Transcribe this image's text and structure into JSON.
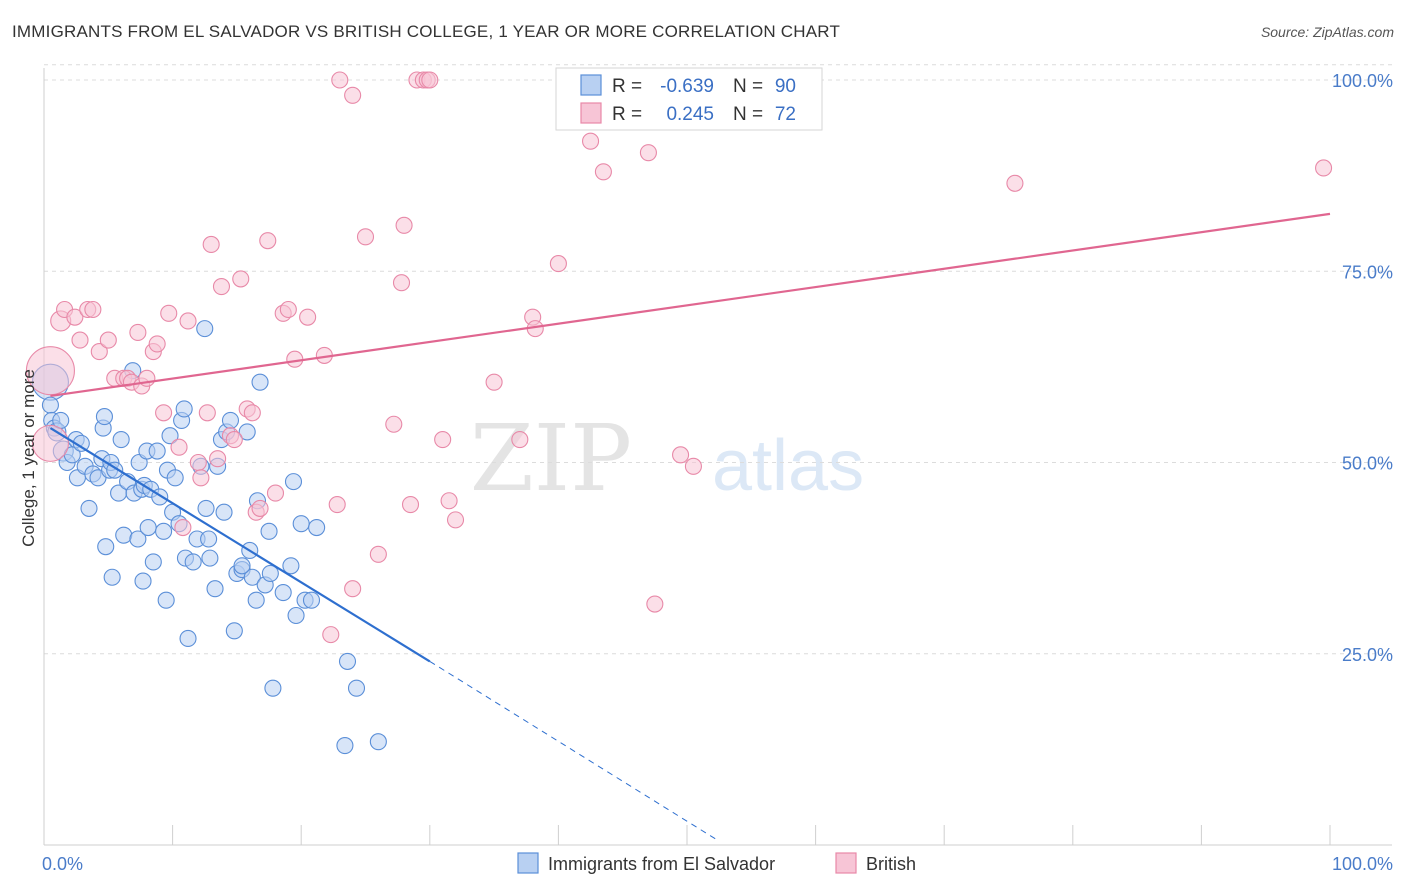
{
  "title": "IMMIGRANTS FROM EL SALVADOR VS BRITISH COLLEGE, 1 YEAR OR MORE CORRELATION CHART",
  "source": "Source: ZipAtlas.com",
  "watermark": {
    "zip": "ZIP",
    "atlas": "atlas"
  },
  "colors": {
    "blue_fill": "#b8d0f2",
    "blue_stroke": "#5b8fd8",
    "blue_line": "#2e6fcf",
    "pink_fill": "#f7c5d6",
    "pink_stroke": "#e889a8",
    "pink_line": "#e06690",
    "grid": "#dcdcdc",
    "tick_label": "#4a7cc9"
  },
  "stats": [
    {
      "series": "Immigrants from El Salvador",
      "r_label": "R =",
      "r": "-0.639",
      "n_label": "N =",
      "n": "90"
    },
    {
      "series": "British",
      "r_label": "R =",
      "r": "0.245",
      "n_label": "N =",
      "n": "72"
    }
  ],
  "chart_data": {
    "type": "scatter",
    "title": "IMMIGRANTS FROM EL SALVADOR VS BRITISH COLLEGE, 1 YEAR OR MORE CORRELATION CHART",
    "xlabel": "",
    "ylabel": "College, 1 year or more",
    "xlim": [
      0,
      100
    ],
    "ylim": [
      0,
      102
    ],
    "x_tick_labels": [
      {
        "value": 0,
        "label": "0.0%"
      },
      {
        "value": 100,
        "label": "100.0%"
      }
    ],
    "y_tick_labels": [
      {
        "value": 25,
        "label": "25.0%"
      },
      {
        "value": 50,
        "label": "50.0%"
      },
      {
        "value": 75,
        "label": "75.0%"
      },
      {
        "value": 100,
        "label": "100.0%"
      }
    ],
    "legend": [
      "Immigrants from El Salvador",
      "British"
    ],
    "legend_position": "bottom-center",
    "series": [
      {
        "name": "Immigrants from El Salvador",
        "color": "#5b8fd8",
        "points": [
          [
            0.5,
            60.5,
            18
          ],
          [
            0.5,
            57.5,
            8
          ],
          [
            0.6,
            55.5,
            8
          ],
          [
            0.8,
            54.5,
            8
          ],
          [
            1.0,
            54,
            9
          ],
          [
            1.3,
            55.5,
            8
          ],
          [
            1.5,
            51.5,
            10
          ],
          [
            1.8,
            50,
            8
          ],
          [
            2.2,
            51,
            8
          ],
          [
            2.5,
            53,
            8
          ],
          [
            2.6,
            48,
            8
          ],
          [
            2.9,
            52.5,
            8
          ],
          [
            3.2,
            49.5,
            8
          ],
          [
            3.5,
            44,
            8
          ],
          [
            3.8,
            48.5,
            8
          ],
          [
            4.2,
            48,
            8
          ],
          [
            4.5,
            50.5,
            8
          ],
          [
            4.6,
            54.5,
            8
          ],
          [
            4.7,
            56,
            8
          ],
          [
            4.8,
            39,
            8
          ],
          [
            5.1,
            49,
            8
          ],
          [
            5.2,
            50,
            8
          ],
          [
            5.3,
            35,
            8
          ],
          [
            5.5,
            49,
            8
          ],
          [
            5.8,
            46,
            8
          ],
          [
            6,
            53,
            8
          ],
          [
            6.2,
            40.5,
            8
          ],
          [
            6.5,
            47.5,
            8
          ],
          [
            6.9,
            62,
            8
          ],
          [
            7,
            46,
            8
          ],
          [
            7.3,
            40,
            8
          ],
          [
            7.4,
            50,
            8
          ],
          [
            7.6,
            46.5,
            8
          ],
          [
            7.7,
            34.5,
            8
          ],
          [
            7.8,
            47,
            8
          ],
          [
            8,
            51.5,
            8
          ],
          [
            8.1,
            41.5,
            8
          ],
          [
            8.3,
            46.5,
            8
          ],
          [
            8.5,
            37,
            8
          ],
          [
            8.8,
            51.5,
            8
          ],
          [
            9.0,
            45.5,
            8
          ],
          [
            9.3,
            41,
            8
          ],
          [
            9.5,
            32,
            8
          ],
          [
            9.6,
            49,
            8
          ],
          [
            9.8,
            53.5,
            8
          ],
          [
            10,
            43.5,
            8
          ],
          [
            10.2,
            48,
            8
          ],
          [
            10.5,
            42,
            8
          ],
          [
            10.7,
            55.5,
            8
          ],
          [
            10.9,
            57,
            8
          ],
          [
            11,
            37.5,
            8
          ],
          [
            11.2,
            27,
            8
          ],
          [
            11.6,
            37,
            8
          ],
          [
            11.9,
            40,
            8
          ],
          [
            12.2,
            49.5,
            8
          ],
          [
            12.5,
            67.5,
            8
          ],
          [
            12.6,
            44,
            8
          ],
          [
            12.8,
            40,
            8
          ],
          [
            12.9,
            37.5,
            8
          ],
          [
            13.3,
            33.5,
            8
          ],
          [
            13.5,
            49.5,
            8
          ],
          [
            13.8,
            53,
            8
          ],
          [
            14.0,
            43.5,
            8
          ],
          [
            14.2,
            54,
            8
          ],
          [
            14.5,
            55.5,
            8
          ],
          [
            14.8,
            28,
            8
          ],
          [
            15,
            35.5,
            8
          ],
          [
            15.4,
            36,
            8
          ],
          [
            15.8,
            54,
            8
          ],
          [
            16.0,
            38.5,
            8
          ],
          [
            16.2,
            35,
            8
          ],
          [
            16.5,
            32,
            8
          ],
          [
            16.6,
            45,
            8
          ],
          [
            16.8,
            60.5,
            8
          ],
          [
            17.2,
            34,
            8
          ],
          [
            17.5,
            41,
            8
          ],
          [
            17.6,
            35.5,
            8
          ],
          [
            17.8,
            20.5,
            8
          ],
          [
            18.6,
            33,
            8
          ],
          [
            19.2,
            36.5,
            8
          ],
          [
            19.4,
            47.5,
            8
          ],
          [
            19.6,
            30,
            8
          ],
          [
            20,
            42,
            8
          ],
          [
            20.3,
            32,
            8
          ],
          [
            20.8,
            32,
            8
          ],
          [
            21.2,
            41.5,
            8
          ],
          [
            23.6,
            24,
            8
          ],
          [
            24.3,
            20.5,
            8
          ],
          [
            23.4,
            13,
            8
          ],
          [
            26.0,
            13.5,
            8
          ],
          [
            15.4,
            36.5,
            8
          ]
        ],
        "trend_solid": [
          [
            0.5,
            54.5
          ],
          [
            30,
            24
          ]
        ],
        "trend_dashed": [
          [
            30,
            24
          ],
          [
            52.5,
            0.5
          ]
        ]
      },
      {
        "name": "British",
        "color": "#e889a8",
        "points": [
          [
            0.5,
            62,
            24
          ],
          [
            0.5,
            52.5,
            18
          ],
          [
            1.3,
            68.5,
            10
          ],
          [
            1.6,
            70,
            8
          ],
          [
            2.4,
            69,
            8
          ],
          [
            2.8,
            66,
            8
          ],
          [
            3.4,
            70,
            8
          ],
          [
            3.8,
            70,
            8
          ],
          [
            4.3,
            64.5,
            8
          ],
          [
            5.0,
            66,
            8
          ],
          [
            5.5,
            61,
            8
          ],
          [
            6.2,
            61,
            8
          ],
          [
            6.5,
            61,
            8
          ],
          [
            6.8,
            60.5,
            8
          ],
          [
            7.3,
            67,
            8
          ],
          [
            7.6,
            60,
            8
          ],
          [
            8.0,
            61,
            8
          ],
          [
            8.5,
            64.5,
            8
          ],
          [
            8.8,
            65.5,
            8
          ],
          [
            9.3,
            56.5,
            8
          ],
          [
            9.7,
            69.5,
            8
          ],
          [
            10.5,
            52,
            8
          ],
          [
            10.8,
            41.5,
            8
          ],
          [
            11.2,
            68.5,
            8
          ],
          [
            12.0,
            50,
            8
          ],
          [
            12.2,
            48,
            8
          ],
          [
            12.7,
            56.5,
            8
          ],
          [
            13.0,
            78.5,
            8
          ],
          [
            13.5,
            50.5,
            8
          ],
          [
            13.8,
            73,
            8
          ],
          [
            14.5,
            53.5,
            8
          ],
          [
            14.8,
            53,
            8
          ],
          [
            15.3,
            74,
            8
          ],
          [
            15.8,
            57,
            8
          ],
          [
            16.2,
            56.5,
            8
          ],
          [
            16.5,
            43.5,
            8
          ],
          [
            16.8,
            44,
            8
          ],
          [
            17.4,
            79,
            8
          ],
          [
            18.0,
            46,
            8
          ],
          [
            18.6,
            69.5,
            8
          ],
          [
            19.0,
            70,
            8
          ],
          [
            19.5,
            63.5,
            8
          ],
          [
            20.5,
            69,
            8
          ],
          [
            21.8,
            64,
            8
          ],
          [
            22.3,
            27.5,
            8
          ],
          [
            22.8,
            44.5,
            8
          ],
          [
            23.0,
            100,
            8
          ],
          [
            24.0,
            98,
            8
          ],
          [
            24.0,
            33.5,
            8
          ],
          [
            25.0,
            79.5,
            8
          ],
          [
            26.0,
            38,
            8
          ],
          [
            27.2,
            55,
            8
          ],
          [
            27.8,
            73.5,
            8
          ],
          [
            28.0,
            81,
            8
          ],
          [
            28.5,
            44.5,
            8
          ],
          [
            29.0,
            100,
            8
          ],
          [
            29.5,
            100,
            8
          ],
          [
            29.8,
            100,
            8
          ],
          [
            30.0,
            100,
            8
          ],
          [
            31.0,
            53,
            8
          ],
          [
            31.5,
            45,
            8
          ],
          [
            32.0,
            42.5,
            8
          ],
          [
            35.0,
            60.5,
            8
          ],
          [
            37.0,
            53,
            8
          ],
          [
            38.0,
            69,
            8
          ],
          [
            38.2,
            67.5,
            8
          ],
          [
            40.0,
            76,
            8
          ],
          [
            42.5,
            92,
            8
          ],
          [
            43.5,
            88,
            8
          ],
          [
            47.0,
            90.5,
            8
          ],
          [
            47.5,
            31.5,
            8
          ],
          [
            49.5,
            51,
            8
          ],
          [
            50.5,
            49.5,
            8
          ],
          [
            75.5,
            86.5,
            8
          ],
          [
            99.5,
            88.5,
            8
          ]
        ],
        "trend_solid": [
          [
            0.5,
            58.7
          ],
          [
            100,
            82.5
          ]
        ]
      }
    ]
  }
}
